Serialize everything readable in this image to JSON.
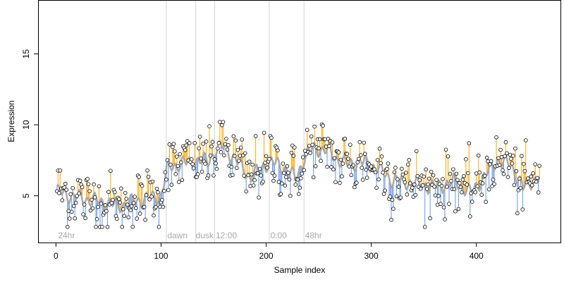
{
  "chart_data": {
    "type": "scatter",
    "title": "",
    "xlabel": "Sample index",
    "ylabel": "Expression",
    "xlim": [
      -17,
      480
    ],
    "ylim": [
      1.7,
      18.8
    ],
    "xticks": [
      0,
      100,
      200,
      300,
      400
    ],
    "yticks": [
      5,
      10,
      15
    ],
    "grid": false,
    "colors": {
      "above_segment": "#ffa500",
      "below_segment": "#6495ed",
      "fit_line": "#a9a9a9",
      "point_edge": "#000000",
      "point_fill": "#ffffff",
      "vline": "#d3d3d3",
      "annotation": "#a8a8a8",
      "frame": "#000000"
    },
    "vertical_lines": [
      105,
      133,
      151,
      203,
      236
    ],
    "annotations": [
      {
        "x": 2,
        "text": "24hr"
      },
      {
        "x": 106,
        "text": "dawn"
      },
      {
        "x": 133,
        "text": "dusk"
      },
      {
        "x": 152,
        "text": "12:00"
      },
      {
        "x": 204,
        "text": "0:00"
      },
      {
        "x": 237,
        "text": "48hr"
      }
    ],
    "fit_knots": [
      [
        0,
        5.3
      ],
      [
        20,
        4.9
      ],
      [
        40,
        4.6
      ],
      [
        60,
        4.3
      ],
      [
        80,
        4.7
      ],
      [
        100,
        5.0
      ],
      [
        106,
        7.0
      ],
      [
        115,
        7.2
      ],
      [
        130,
        7.4
      ],
      [
        145,
        7.5
      ],
      [
        152,
        8.2
      ],
      [
        160,
        8.5
      ],
      [
        170,
        7.6
      ],
      [
        185,
        6.3
      ],
      [
        203,
        7.4
      ],
      [
        215,
        7.1
      ],
      [
        228,
        6.2
      ],
      [
        236,
        7.6
      ],
      [
        245,
        8.4
      ],
      [
        260,
        8.1
      ],
      [
        275,
        7.2
      ],
      [
        290,
        7.4
      ],
      [
        305,
        7.0
      ],
      [
        320,
        6.1
      ],
      [
        340,
        5.9
      ],
      [
        360,
        5.6
      ],
      [
        380,
        6.0
      ],
      [
        395,
        5.2
      ],
      [
        410,
        6.6
      ],
      [
        420,
        7.5
      ],
      [
        432,
        7.2
      ],
      [
        445,
        5.6
      ],
      [
        460,
        6.4
      ]
    ],
    "noise_sd": 1.05,
    "n_points": 460
  }
}
